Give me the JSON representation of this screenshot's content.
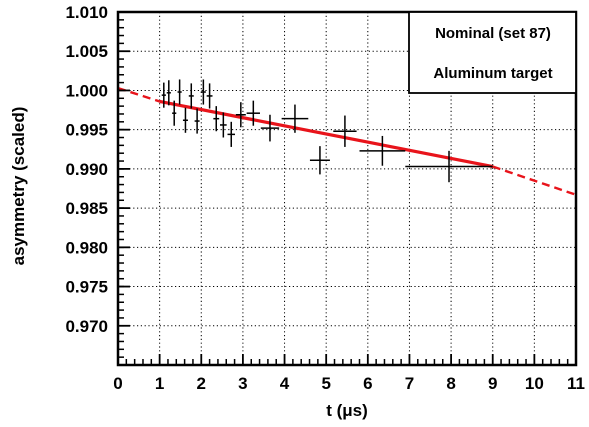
{
  "chart_data": {
    "type": "scatter",
    "xlabel": "t (μs)",
    "ylabel": "asymmetry (scaled)",
    "xlim": [
      0,
      11
    ],
    "ylim": [
      0.965,
      1.01
    ],
    "x_ticks": [
      0,
      1,
      2,
      3,
      4,
      5,
      6,
      7,
      8,
      9,
      10,
      11
    ],
    "x_tick_labels": [
      "0",
      "1",
      "2",
      "3",
      "4",
      "5",
      "6",
      "7",
      "8",
      "9",
      "10",
      "11"
    ],
    "y_ticks": [
      0.97,
      0.975,
      0.98,
      0.985,
      0.99,
      0.995,
      1.0,
      1.005,
      1.01
    ],
    "y_tick_labels": [
      "0.970",
      "0.975",
      "0.980",
      "0.985",
      "0.990",
      "0.995",
      "1.000",
      "1.005",
      "1.010"
    ],
    "grid": true,
    "legend_position": "top-right",
    "legend": [
      "Nominal (set 87)",
      "Aluminum target"
    ],
    "colors": {
      "data": "#000000",
      "fit": "#e8141b",
      "grid": "#000000"
    },
    "points": [
      {
        "x": 1.1,
        "y": 0.9994,
        "xerr": 0.05,
        "yerr": 0.0016
      },
      {
        "x": 1.22,
        "y": 0.9997,
        "xerr": 0.05,
        "yerr": 0.0016
      },
      {
        "x": 1.35,
        "y": 0.9971,
        "xerr": 0.05,
        "yerr": 0.0016
      },
      {
        "x": 1.48,
        "y": 0.9998,
        "xerr": 0.05,
        "yerr": 0.0016
      },
      {
        "x": 1.62,
        "y": 0.9962,
        "xerr": 0.06,
        "yerr": 0.0016
      },
      {
        "x": 1.76,
        "y": 0.9993,
        "xerr": 0.06,
        "yerr": 0.0016
      },
      {
        "x": 1.9,
        "y": 0.9961,
        "xerr": 0.06,
        "yerr": 0.0016
      },
      {
        "x": 2.05,
        "y": 0.9998,
        "xerr": 0.06,
        "yerr": 0.0016
      },
      {
        "x": 2.2,
        "y": 0.9993,
        "xerr": 0.07,
        "yerr": 0.0016
      },
      {
        "x": 2.36,
        "y": 0.9964,
        "xerr": 0.07,
        "yerr": 0.0016
      },
      {
        "x": 2.53,
        "y": 0.9956,
        "xerr": 0.08,
        "yerr": 0.0016
      },
      {
        "x": 2.72,
        "y": 0.9944,
        "xerr": 0.09,
        "yerr": 0.0016
      },
      {
        "x": 2.95,
        "y": 0.9969,
        "xerr": 0.12,
        "yerr": 0.0016
      },
      {
        "x": 3.25,
        "y": 0.9971,
        "xerr": 0.16,
        "yerr": 0.0016
      },
      {
        "x": 3.65,
        "y": 0.9952,
        "xerr": 0.22,
        "yerr": 0.0017
      },
      {
        "x": 4.25,
        "y": 0.9964,
        "xerr": 0.32,
        "yerr": 0.0018
      },
      {
        "x": 4.85,
        "y": 0.9911,
        "xerr": 0.24,
        "yerr": 0.0018
      },
      {
        "x": 5.45,
        "y": 0.9948,
        "xerr": 0.28,
        "yerr": 0.002
      },
      {
        "x": 6.35,
        "y": 0.9923,
        "xerr": 0.55,
        "yerr": 0.0019
      },
      {
        "x": 7.95,
        "y": 0.9903,
        "xerr": 1.05,
        "yerr": 0.002
      }
    ],
    "fit": {
      "solid_x": [
        1.0,
        9.0
      ],
      "solid_y": [
        0.9986,
        0.9903
      ],
      "dashed_segments": [
        {
          "x": [
            0.0,
            1.0
          ],
          "y": [
            1.0003,
            0.9986
          ]
        },
        {
          "x": [
            9.0,
            11.0
          ],
          "y": [
            0.9903,
            0.9867
          ]
        }
      ]
    }
  }
}
